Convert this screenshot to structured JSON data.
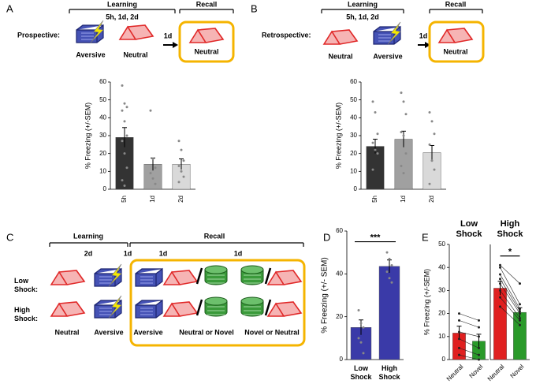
{
  "panel_a": {
    "letter": "A",
    "learning": "Learning",
    "times": "5h, 1d, 2d",
    "recall": "Recall",
    "delay": "1d",
    "condition": "Prospective:",
    "first": "Aversive",
    "second": "Neutral",
    "recall_context": "Neutral"
  },
  "panel_b": {
    "letter": "B",
    "learning": "Learning",
    "times": "5h, 1d, 2d",
    "recall": "Recall",
    "delay": "1d",
    "condition": "Retrospective:",
    "first": "Neutral",
    "second": "Aversive",
    "recall_context": "Neutral"
  },
  "panel_c": {
    "letter": "C",
    "learning": "Learning",
    "learning_gap": "2d",
    "recall_gap": "1d",
    "recall": "Recall",
    "gap1": "1d",
    "gap2": "1d",
    "low": "Low Shock:",
    "high": "High Shock:",
    "ctx1": "Neutral",
    "ctx2": "Aversive",
    "ctx3": "Aversive",
    "ctx4": "Neutral or Novel",
    "ctx5": "Novel or Neutral"
  },
  "panel_d": {
    "letter": "D"
  },
  "panel_e": {
    "letter": "E"
  },
  "chart_data": [
    {
      "type": "bar",
      "y_label": "% Freezing (+/-SEM)",
      "categories": [
        "5h",
        "1d",
        "2d"
      ],
      "values": [
        29,
        14,
        14
      ],
      "errors": [
        5.5,
        3.5,
        3
      ],
      "colors": [
        "#333333",
        "#a0a0a0",
        "#d9d9d9"
      ],
      "points": [
        [
          58,
          48,
          46,
          44,
          38,
          30,
          27,
          20,
          12,
          5,
          2
        ],
        [
          44,
          17,
          12,
          9,
          6,
          3
        ],
        [
          27,
          22,
          16,
          13,
          10,
          7,
          4
        ]
      ],
      "ylim": [
        0,
        60
      ],
      "yticks": [
        0,
        10,
        20,
        30,
        40,
        50,
        60
      ]
    },
    {
      "type": "bar",
      "y_label": "% Freezing (+/-SEM)",
      "categories": [
        "5h",
        "1d",
        "2d"
      ],
      "values": [
        24,
        28,
        20.5
      ],
      "errors": [
        4,
        4.5,
        4
      ],
      "colors": [
        "#333333",
        "#a0a0a0",
        "#d9d9d9"
      ],
      "points": [
        [
          49,
          43,
          31,
          26,
          22,
          20,
          11
        ],
        [
          54,
          49,
          42,
          32,
          30,
          20,
          13,
          9
        ],
        [
          43,
          38,
          31,
          25,
          16,
          11,
          3
        ]
      ],
      "ylim": [
        0,
        60
      ],
      "yticks": [
        0,
        10,
        20,
        30,
        40,
        50,
        60
      ]
    },
    {
      "type": "bar",
      "y_label": "% Freezing (+/- SEM)",
      "categories": [
        "Low Shock",
        "High Shock"
      ],
      "values": [
        15,
        43.5
      ],
      "errors": [
        3.5,
        3
      ],
      "colors": [
        "#3a3aa8",
        "#3a3aa8"
      ],
      "points": [
        [
          23,
          17,
          15,
          10,
          8,
          3
        ],
        [
          50,
          47,
          44,
          41,
          38,
          36
        ]
      ],
      "annotation": "***",
      "ylim": [
        0,
        60
      ],
      "yticks": [
        0,
        20,
        40,
        60
      ]
    },
    {
      "type": "paired",
      "title": "Low Shock",
      "y_label": "% Freezing (+/-SEM)",
      "categories": [
        "Neutral",
        "Novel"
      ],
      "values": [
        11.5,
        8
      ],
      "errors": [
        3,
        3
      ],
      "colors": [
        "#e02020",
        "#2a9a2a"
      ],
      "points": [
        [
          20,
          17,
          12,
          9,
          5,
          2
        ],
        [
          17,
          14,
          10,
          5,
          2,
          0
        ]
      ],
      "ylim": [
        0,
        50
      ],
      "yticks": [
        0,
        10,
        20,
        30,
        40,
        50
      ]
    },
    {
      "type": "paired",
      "title": "High Shock",
      "categories": [
        "Neutral",
        "Novel"
      ],
      "values": [
        31,
        20.5
      ],
      "errors": [
        3,
        2
      ],
      "colors": [
        "#e02020",
        "#2a9a2a"
      ],
      "points": [
        [
          41,
          40,
          37,
          35,
          33,
          30,
          27,
          23
        ],
        [
          33,
          24,
          22,
          21,
          20,
          18,
          17,
          15
        ]
      ],
      "annotation": "*",
      "ylim": [
        0,
        50
      ]
    }
  ]
}
